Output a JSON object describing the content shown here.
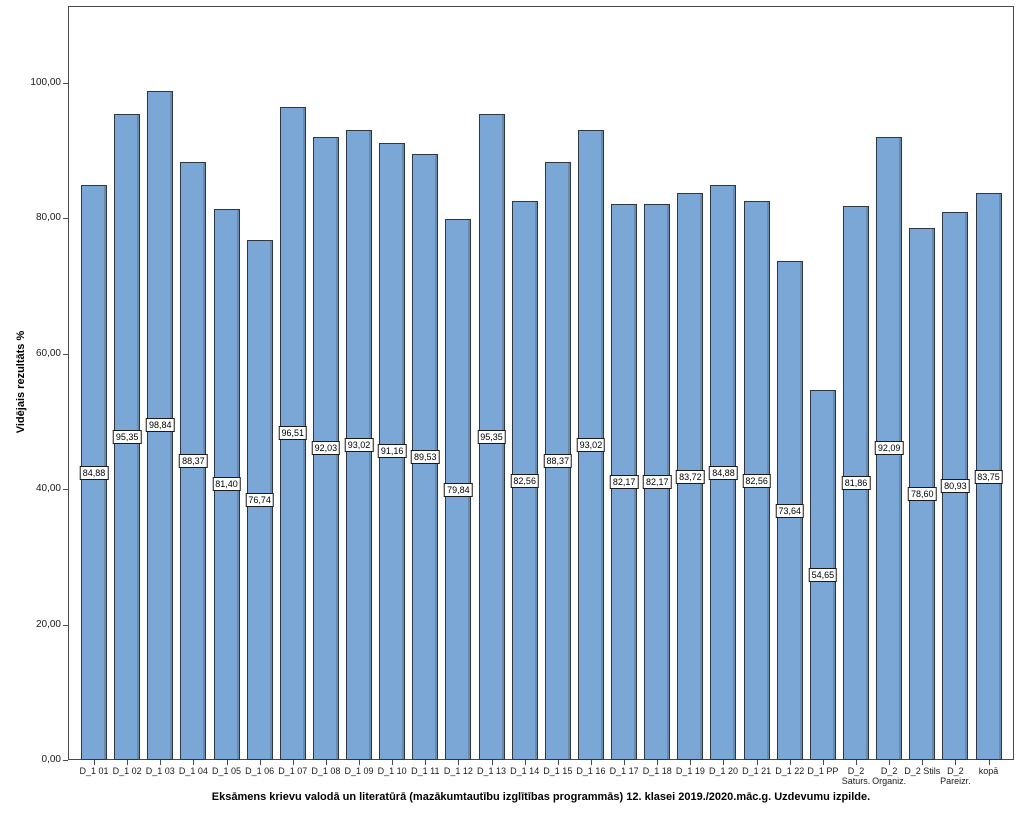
{
  "chart_data": {
    "type": "bar",
    "title": "Eksāmens krievu valodā un literatūrā (mazākumtautību izglītības programmās) 12. klasei 2019./2020.māc.g. Uzdevumu izpilde.",
    "ylabel": "Vidējais rezultāts %",
    "xlabel": "",
    "ylim": [
      0,
      100
    ],
    "grid": false,
    "legend": "none",
    "bar_color": "#7BA7D7",
    "bar_border_color": "#2e3743",
    "frame_color": "#4a4a4a",
    "yticks": [
      {
        "value": 0,
        "label": "0,00"
      },
      {
        "value": 20,
        "label": "20,00"
      },
      {
        "value": 40,
        "label": "40,00"
      },
      {
        "value": 60,
        "label": "60,00"
      },
      {
        "value": 80,
        "label": "80,00"
      },
      {
        "value": 100,
        "label": "100,00"
      }
    ],
    "categories": [
      "D_1 01",
      "D_1 02",
      "D_1 03",
      "D_1 04",
      "D_1 05",
      "D_1 06",
      "D_1 07",
      "D_1 08",
      "D_1 09",
      "D_1 10",
      "D_1 11",
      "D_1 12",
      "D_1 13",
      "D_1 14",
      "D_1 15",
      "D_1 16",
      "D_1 17",
      "D_1 18",
      "D_1 19",
      "D_1 20",
      "D_1 21",
      "D_1 22",
      "D_1 PP",
      "D_2\nSaturs.",
      "D_2\nOrganiz.",
      "D_2 Stils",
      "D_2\nPareizr.",
      "kopā"
    ],
    "values": [
      84.88,
      95.35,
      98.84,
      88.37,
      81.4,
      76.74,
      96.51,
      92.03,
      93.02,
      91.16,
      89.53,
      79.84,
      95.35,
      82.56,
      88.37,
      93.02,
      82.17,
      82.17,
      83.72,
      84.88,
      82.56,
      73.64,
      54.65,
      81.86,
      92.09,
      78.6,
      80.93,
      83.75
    ],
    "value_labels": [
      "84,88",
      "95,35",
      "98,84",
      "88,37",
      "81,40",
      "76,74",
      "96,51",
      "92,03",
      "93,02",
      "91,16",
      "89,53",
      "79,84",
      "95,35",
      "82,56",
      "88,37",
      "93,02",
      "82,17",
      "82,17",
      "83,72",
      "84,88",
      "82,56",
      "73,64",
      "54,65",
      "81,86",
      "92,09",
      "78,60",
      "80,93",
      "83,75"
    ]
  }
}
